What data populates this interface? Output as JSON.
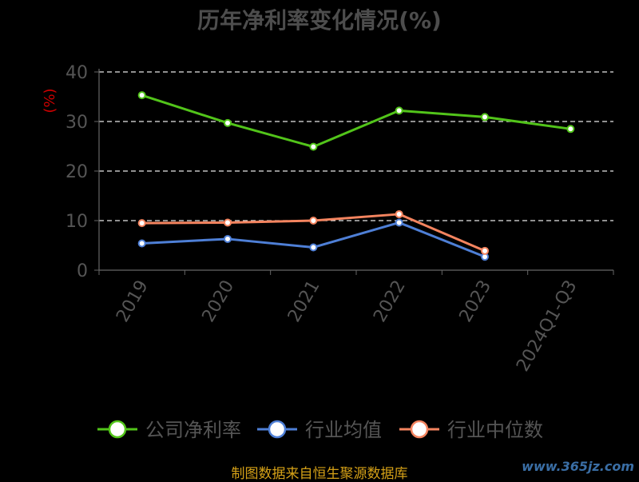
{
  "chart_data": {
    "type": "line",
    "title": "历年净利率变化情况(%)",
    "ylabel": "(%)",
    "ylim": [
      0,
      40
    ],
    "yticks": [
      0,
      10,
      20,
      30,
      40
    ],
    "categories": [
      "2019",
      "2020",
      "2021",
      "2022",
      "2023",
      "2024Q1-Q3"
    ],
    "grid": true,
    "legend_position": "bottom",
    "series": [
      {
        "name": "公司净利率",
        "color": "#52c41a",
        "values": [
          35.3,
          29.7,
          24.9,
          32.2,
          30.9,
          28.5
        ]
      },
      {
        "name": "行业均值",
        "color": "#4e7fd6",
        "values": [
          5.4,
          6.3,
          4.6,
          9.6,
          2.7,
          null
        ]
      },
      {
        "name": "行业中位数",
        "color": "#f4845f",
        "values": [
          9.5,
          9.6,
          10.0,
          11.3,
          3.9,
          null
        ]
      }
    ]
  },
  "footer": {
    "source": "制图数据来自恒生聚源数据库",
    "watermark": "www.365jz.com"
  }
}
